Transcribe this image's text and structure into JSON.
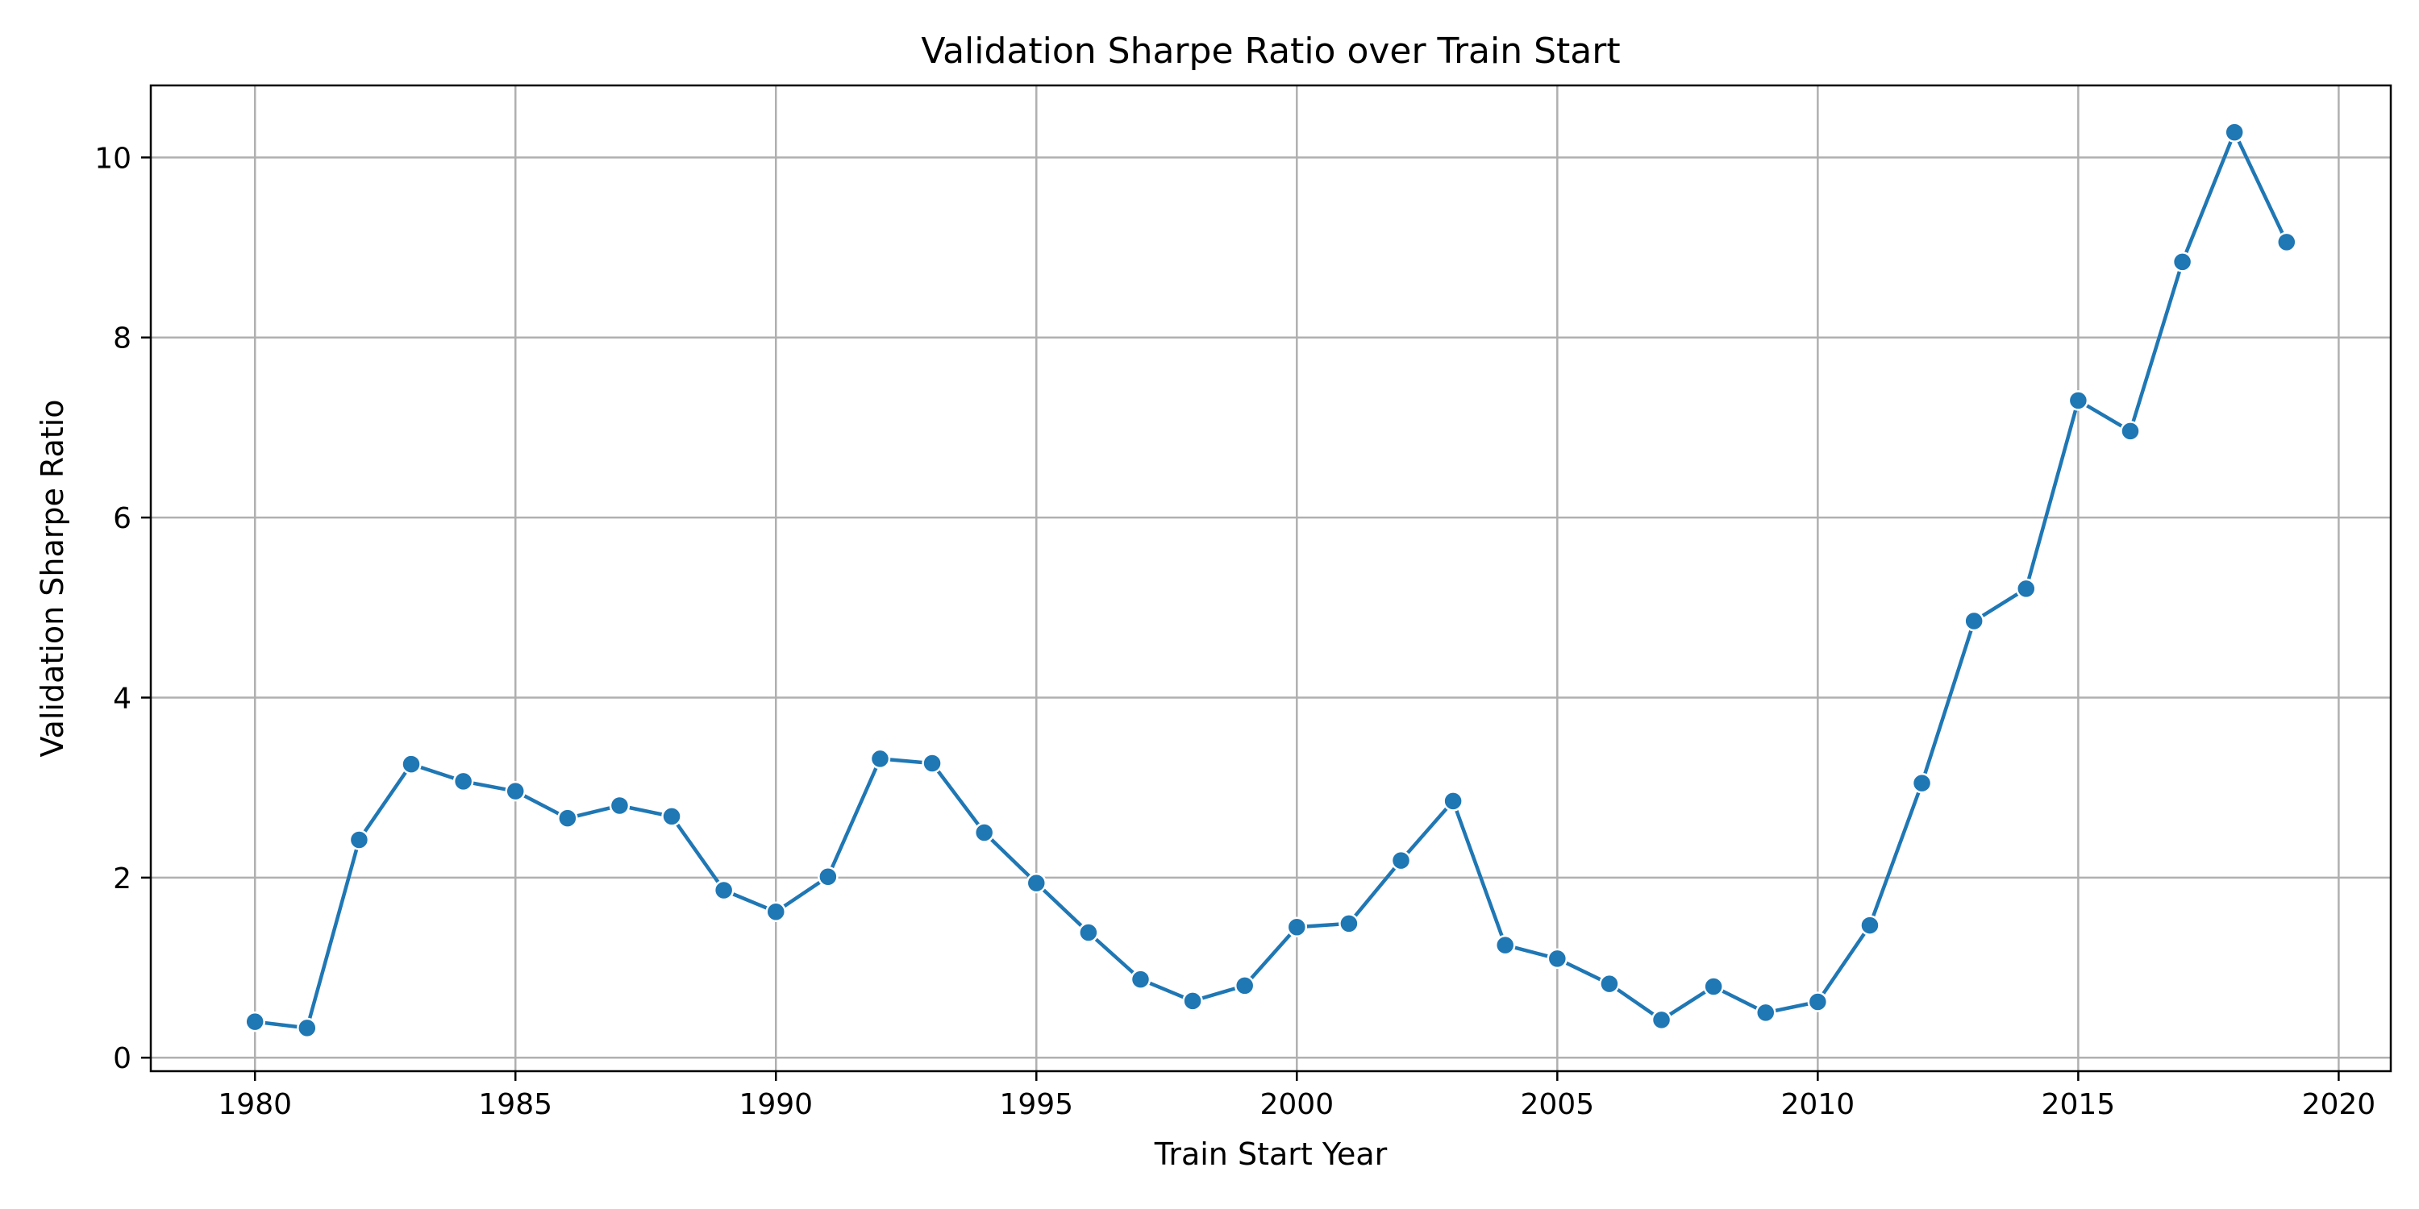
{
  "chart_data": {
    "type": "line",
    "title": "Validation Sharpe Ratio over Train Start",
    "xlabel": "Train Start Year",
    "ylabel": "Validation Sharpe Ratio",
    "xlim": [
      1978,
      2021
    ],
    "ylim": [
      -0.15,
      10.8
    ],
    "xticks": [
      1980,
      1985,
      1990,
      1995,
      2000,
      2005,
      2010,
      2015,
      2020
    ],
    "yticks": [
      0,
      2,
      4,
      6,
      8,
      10
    ],
    "grid": true,
    "color": "#1f77b4",
    "series": [
      {
        "x": [
          1980,
          1981,
          1982,
          1983,
          1984,
          1985,
          1986,
          1987,
          1988,
          1989,
          1990,
          1991,
          1992,
          1993,
          1994,
          1995,
          1996,
          1997,
          1998,
          1999,
          2000,
          2001,
          2002,
          2003,
          2004,
          2005,
          2006,
          2007,
          2008,
          2009,
          2010,
          2011,
          2012,
          2013,
          2014,
          2015,
          2016,
          2017,
          2018,
          2019
        ],
        "y": [
          0.4,
          0.33,
          2.42,
          3.26,
          3.07,
          2.96,
          2.66,
          2.8,
          2.68,
          1.86,
          1.62,
          2.01,
          3.32,
          3.27,
          2.5,
          1.94,
          1.39,
          0.87,
          0.63,
          0.8,
          1.45,
          1.49,
          2.19,
          2.85,
          1.25,
          1.1,
          0.82,
          0.42,
          0.79,
          0.5,
          0.62,
          1.47,
          3.05,
          4.85,
          5.21,
          7.3,
          6.96,
          8.84,
          10.28,
          9.06
        ]
      }
    ]
  }
}
